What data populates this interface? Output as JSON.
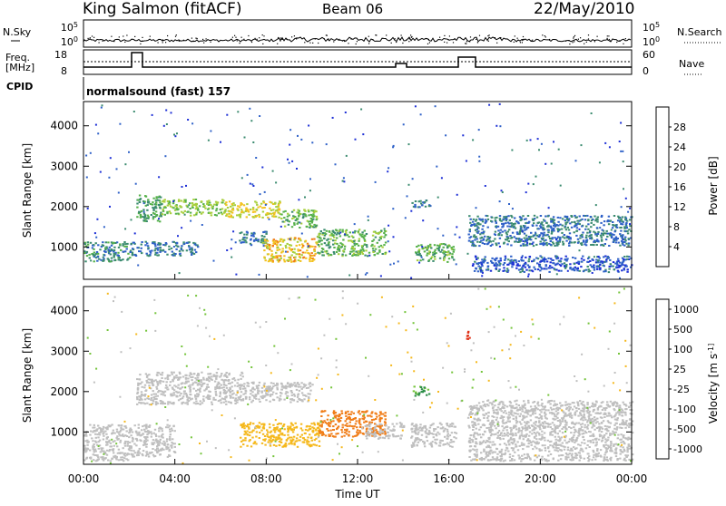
{
  "header": {
    "station": "King Salmon (fitACF)",
    "beam": "Beam 06",
    "date": "22/May/2010"
  },
  "noise_panel": {
    "left_label": "N.Sky",
    "right_label": "N.Search",
    "left_ticks": [
      "10^5",
      "10^0"
    ],
    "right_ticks": [
      "10^5",
      "10^0"
    ]
  },
  "freq_panel": {
    "left_label_1": "Freq.",
    "left_label_2": "[MHz]",
    "right_label": "Nave",
    "left_ticks": [
      "18",
      "8"
    ],
    "right_ticks": [
      "60",
      "0"
    ]
  },
  "cpid_panel": {
    "label": "CPID",
    "text": "normalsound (fast) 157"
  },
  "colors": {
    "power_scale": [
      "#1d2fd6",
      "#2f61c8",
      "#3b8b6f",
      "#56b14b",
      "#a8cf3c",
      "#f3c21f",
      "#f07d18",
      "#e03218"
    ],
    "velocity_scale": [
      "#1d2fd6",
      "#3b6fc8",
      "#2e8f49",
      "#74c43b",
      "#bfbfbf",
      "#f5b81c",
      "#f07d18",
      "#e03218"
    ]
  },
  "chart_data": [
    {
      "type": "heatmap",
      "parameter": "power",
      "ylabel": "Slant Range [km]",
      "xlabel": "",
      "ylim": [
        200,
        4600
      ],
      "xlim_hours": [
        0,
        24
      ],
      "y_ticks": [
        "1000",
        "2000",
        "3000",
        "4000"
      ],
      "colorbar": {
        "label": "Power [dB]",
        "ticks": [
          "4",
          "8",
          "12",
          "16",
          "20",
          "24",
          "28"
        ],
        "range": [
          0,
          32
        ]
      },
      "regions": [
        {
          "t0": 0.0,
          "t1": 2.0,
          "r0": 650,
          "r1": 1150,
          "level": 10
        },
        {
          "t0": 2.0,
          "t1": 5.0,
          "r0": 800,
          "r1": 1150,
          "level": 8
        },
        {
          "t0": 2.3,
          "t1": 3.4,
          "r0": 1650,
          "r1": 2300,
          "level": 12
        },
        {
          "t0": 3.4,
          "t1": 6.2,
          "r0": 1800,
          "r1": 2200,
          "level": 16
        },
        {
          "t0": 6.2,
          "t1": 8.6,
          "r0": 1750,
          "r1": 2150,
          "level": 20
        },
        {
          "t0": 8.6,
          "t1": 10.2,
          "r0": 1500,
          "r1": 1950,
          "level": 14
        },
        {
          "t0": 6.8,
          "t1": 8.0,
          "r0": 1050,
          "r1": 1400,
          "level": 8
        },
        {
          "t0": 7.8,
          "t1": 10.2,
          "r0": 650,
          "r1": 1250,
          "level": 22
        },
        {
          "t0": 10.2,
          "t1": 13.2,
          "r0": 800,
          "r1": 1450,
          "level": 14
        },
        {
          "t0": 14.3,
          "t1": 15.2,
          "r0": 2000,
          "r1": 2200,
          "level": 8
        },
        {
          "t0": 14.5,
          "t1": 16.2,
          "r0": 650,
          "r1": 1100,
          "level": 14
        },
        {
          "t0": 16.8,
          "t1": 24.0,
          "r0": 1050,
          "r1": 1800,
          "level": 8
        },
        {
          "t0": 17.0,
          "t1": 24.0,
          "r0": 400,
          "r1": 800,
          "level": 6
        }
      ]
    },
    {
      "type": "heatmap",
      "parameter": "velocity",
      "ylabel": "Slant Range [km]",
      "xlabel": "Time UT",
      "ylim": [
        200,
        4600
      ],
      "xlim_hours": [
        0,
        24
      ],
      "y_ticks": [
        "1000",
        "2000",
        "3000",
        "4000"
      ],
      "x_ticks": [
        "00:00",
        "04:00",
        "08:00",
        "12:00",
        "16:00",
        "20:00",
        "00:00"
      ],
      "colorbar": {
        "label": "Velocity [m s^-1]",
        "ticks": [
          "1000",
          "500",
          "100",
          "25",
          "-25",
          "-100",
          "-500",
          "-1000"
        ]
      },
      "regions": [
        {
          "t0": 0.0,
          "t1": 2.0,
          "r0": 300,
          "r1": 1200,
          "value": 0
        },
        {
          "t0": 2.0,
          "t1": 4.0,
          "r0": 400,
          "r1": 1200,
          "value": 0
        },
        {
          "t0": 2.3,
          "t1": 7.0,
          "r0": 1700,
          "r1": 2500,
          "value": 0
        },
        {
          "t0": 7.0,
          "t1": 10.0,
          "r0": 1750,
          "r1": 2250,
          "value": 0
        },
        {
          "t0": 6.8,
          "t1": 10.3,
          "r0": 650,
          "r1": 1250,
          "value": -80
        },
        {
          "t0": 10.3,
          "t1": 13.2,
          "r0": 900,
          "r1": 1550,
          "value": -300
        },
        {
          "t0": 12.3,
          "t1": 14.0,
          "r0": 850,
          "r1": 1250,
          "value": 0
        },
        {
          "t0": 14.4,
          "t1": 15.1,
          "r0": 1900,
          "r1": 2150,
          "value": 60
        },
        {
          "t0": 14.3,
          "t1": 16.3,
          "r0": 650,
          "r1": 1250,
          "value": 0
        },
        {
          "t0": 16.8,
          "t1": 24.0,
          "r0": 300,
          "r1": 1800,
          "value": 0
        },
        {
          "t0": 16.7,
          "t1": 16.9,
          "r0": 3250,
          "r1": 3550,
          "value": -600
        }
      ]
    }
  ]
}
